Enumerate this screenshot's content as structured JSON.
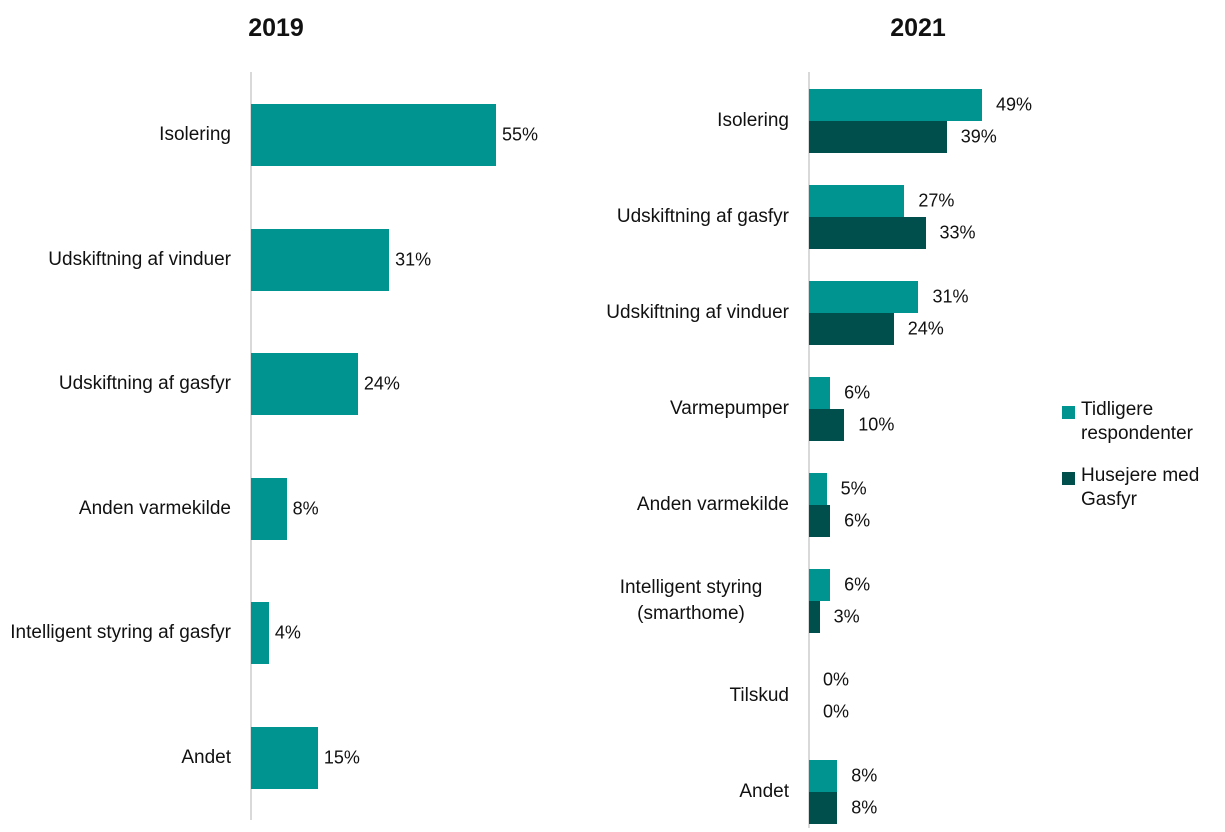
{
  "chart_data": [
    {
      "type": "barh",
      "title": "2019",
      "categories": [
        "Isolering",
        "Udskiftning af vinduer",
        "Udskiftning af gasfyr",
        "Anden varmekilde",
        "Intelligent styring af gasfyr",
        "Andet"
      ],
      "series": [
        {
          "name": null,
          "color": "#009490",
          "values": [
            55,
            31,
            24,
            8,
            4,
            15
          ],
          "value_labels": [
            "55%",
            "31%",
            "24%",
            "8%",
            "4%",
            "15%"
          ]
        }
      ]
    },
    {
      "type": "barh",
      "title": "2021",
      "categories": [
        "Isolering",
        "Udskiftning af gasfyr",
        "Udskiftning af vinduer",
        "Varmepumper",
        "Anden varmekilde",
        "Intelligent styring (smarthome)",
        "Tilskud",
        "Andet"
      ],
      "series": [
        {
          "name": "Tidligere respondenter",
          "color": "#009490",
          "values": [
            49,
            27,
            31,
            6,
            5,
            6,
            0,
            8
          ],
          "value_labels": [
            "49%",
            "27%",
            "31%",
            "6%",
            "5%",
            "6%",
            "0%",
            "8%"
          ]
        },
        {
          "name": "Husejere med Gasfyr",
          "color": "#004f4c",
          "values": [
            39,
            33,
            24,
            10,
            6,
            3,
            0,
            8
          ],
          "value_labels": [
            "39%",
            "33%",
            "24%",
            "10%",
            "6%",
            "3%",
            "0%",
            "8%"
          ]
        }
      ],
      "legend": "right"
    }
  ]
}
